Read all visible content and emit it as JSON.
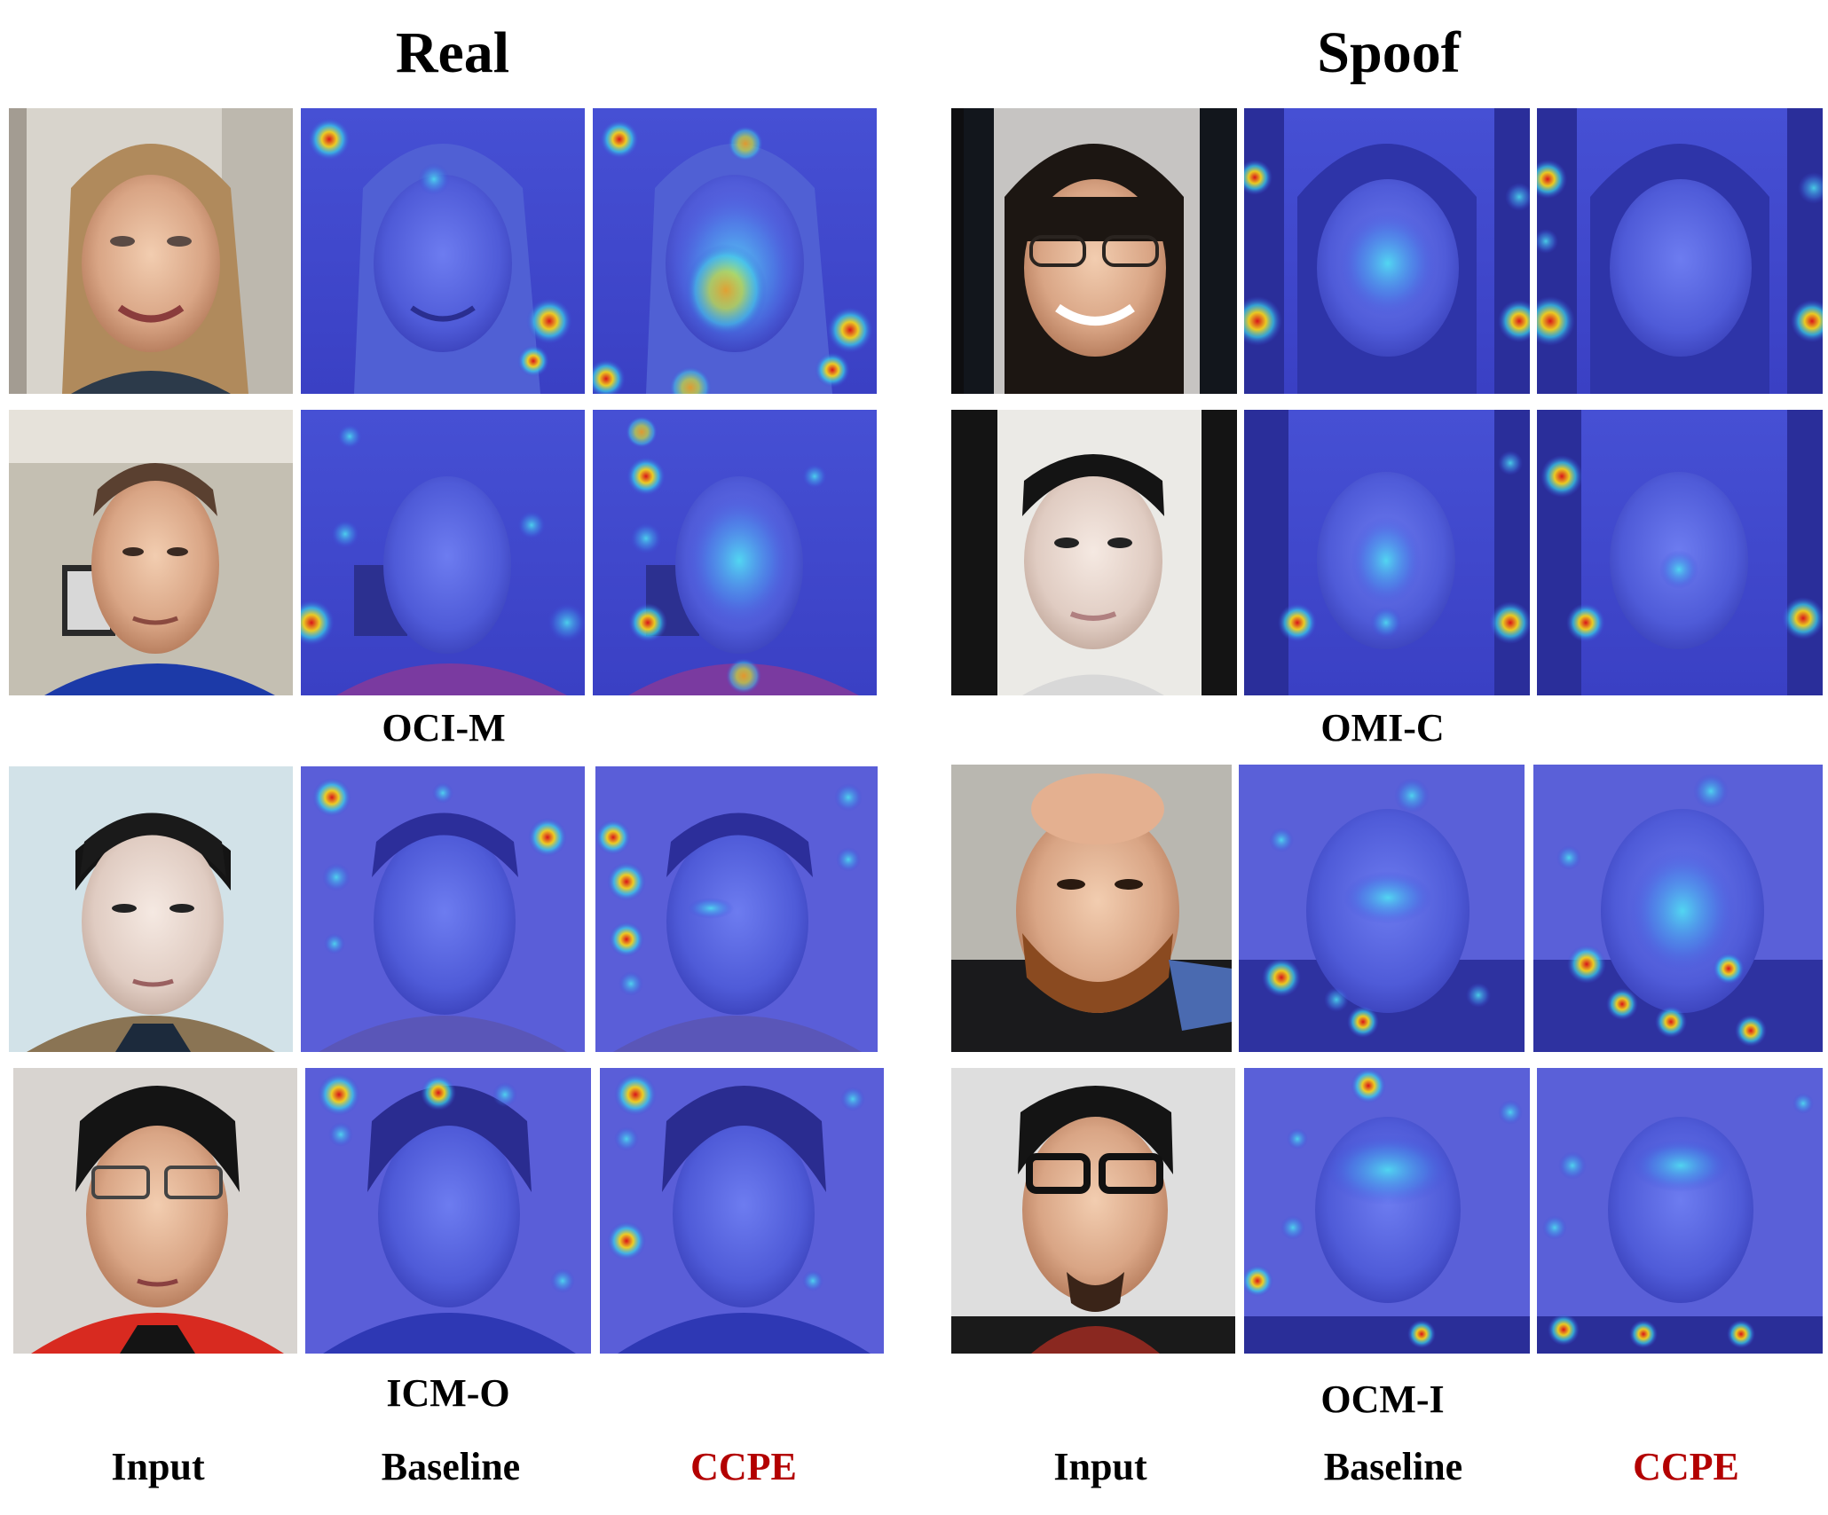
{
  "sections": [
    {
      "title": "Real"
    },
    {
      "title": "Spoof"
    }
  ],
  "groups": [
    {
      "label": "OCI-M"
    },
    {
      "label": "OMI-C"
    },
    {
      "label": "ICM-O"
    },
    {
      "label": "OCM-I"
    }
  ],
  "columns": {
    "left": [
      "Input",
      "Baseline",
      "CCPE"
    ],
    "right": [
      "Input",
      "Baseline",
      "CCPE"
    ]
  },
  "colors": {
    "heatmap_base": "#3a46d8",
    "hot_core": "#e0281c",
    "warm": "#f2c81a",
    "cool": "#39d0e8",
    "ccpe_label": "#b30000"
  }
}
